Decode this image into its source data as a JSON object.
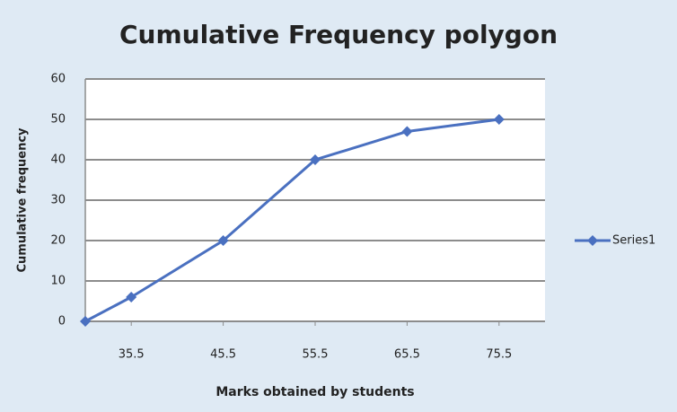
{
  "chart_data": {
    "type": "line",
    "title": "Cumulative Frequency polygon",
    "x_label": "Marks obtained by students",
    "y_label": "Cumulative frequency",
    "x": [
      30.5,
      35.5,
      45.5,
      55.5,
      65.5,
      75.5
    ],
    "series": [
      {
        "name": "Series1",
        "color": "#4a70c0",
        "values": [
          0,
          6,
          20,
          40,
          47,
          50
        ]
      }
    ],
    "xlim": [
      30.5,
      80.5
    ],
    "xticks": [
      35.5,
      45.5,
      55.5,
      65.5,
      75.5
    ],
    "ylim": [
      0,
      60
    ],
    "yticks": [
      0,
      10,
      20,
      30,
      40,
      50,
      60
    ],
    "grid": true,
    "legend": "right"
  }
}
